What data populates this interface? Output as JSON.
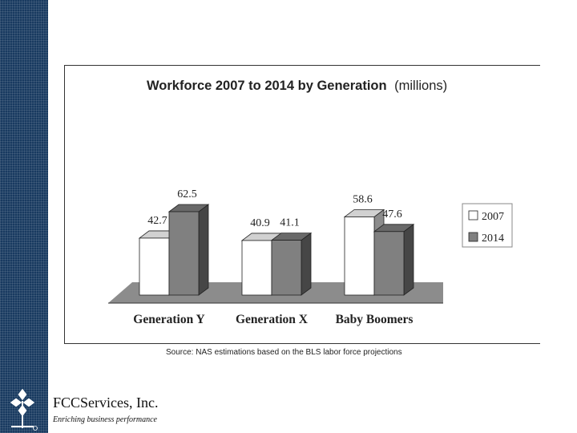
{
  "chart_data": {
    "type": "bar",
    "title": "Workforce 2007 to 2014 by Generation",
    "title_units": "(millions)",
    "categories": [
      "Generation Y",
      "Generation X",
      "Baby Boomers"
    ],
    "series": [
      {
        "name": "2007",
        "values": [
          42.7,
          40.9,
          58.6
        ],
        "color": "#ffffff"
      },
      {
        "name": "2014",
        "values": [
          62.5,
          41.1,
          47.6
        ],
        "color": "#808080"
      }
    ],
    "ylim": [
      0,
      70
    ],
    "legend": "right",
    "grid": false
  },
  "source_note": "Source: NAS estimations based on the BLS labor force projections",
  "footer": {
    "company": "FCCServices, Inc.",
    "tagline": "Enriching business performance"
  },
  "colors": {
    "sidebar": "#183a60",
    "bar_2007": "#ffffff",
    "bar_2014": "#808080",
    "floor": "#8c8c8c"
  }
}
